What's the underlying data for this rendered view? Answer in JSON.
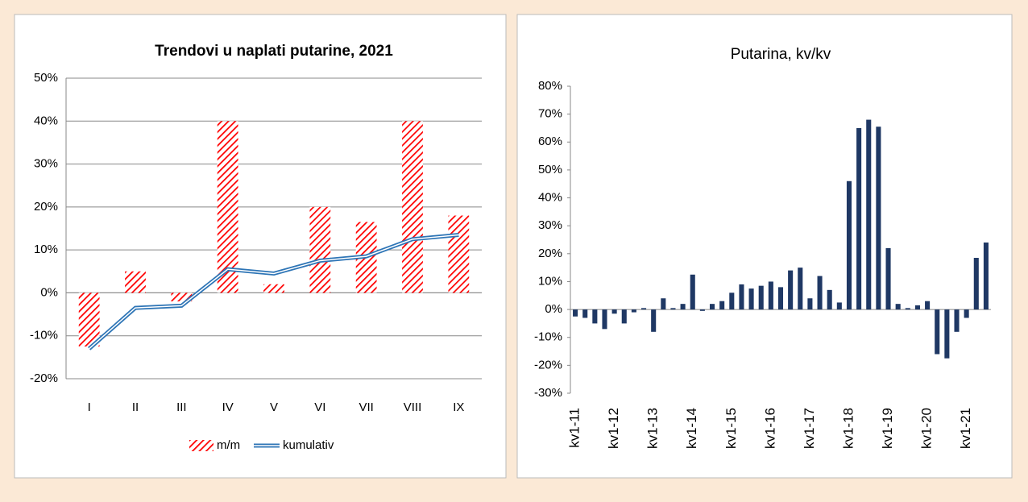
{
  "chart_data": [
    {
      "type": "bar",
      "title": "Trendovi u naplati putarine, 2021",
      "categories": [
        "I",
        "II",
        "III",
        "IV",
        "V",
        "VI",
        "VII",
        "VIII",
        "IX"
      ],
      "series": [
        {
          "name": "m/m",
          "type": "bar",
          "pattern": "hatch",
          "color": "#ff0000",
          "values": [
            -12.5,
            5,
            -2,
            40,
            2,
            20,
            16.5,
            40,
            18
          ]
        },
        {
          "name": "kumulativ",
          "type": "line",
          "color": "#2e75b6",
          "values": [
            -13,
            -3.5,
            -3,
            5.5,
            4.5,
            7.5,
            8.5,
            12.5,
            13.5
          ]
        }
      ],
      "ylim": [
        -20,
        50
      ],
      "yticks": [
        {
          "value": -20,
          "label": "-20%"
        },
        {
          "value": -10,
          "label": "-10%"
        },
        {
          "value": 0,
          "label": "0%"
        },
        {
          "value": 10,
          "label": "10%"
        },
        {
          "value": 20,
          "label": "20%"
        },
        {
          "value": 30,
          "label": "30%"
        },
        {
          "value": 40,
          "label": "40%"
        },
        {
          "value": 50,
          "label": "50%"
        }
      ],
      "grid": true,
      "legend": "bottom"
    },
    {
      "type": "bar",
      "title": "Putarina, kv/kv",
      "categories": [
        "kv1-11",
        null,
        null,
        null,
        "kv1-12",
        null,
        null,
        null,
        "kv1-13",
        null,
        null,
        null,
        "kv1-14",
        null,
        null,
        null,
        "kv1-15",
        null,
        null,
        null,
        "kv1-16",
        null,
        null,
        null,
        "kv1-17",
        null,
        null,
        null,
        "kv1-18",
        null,
        null,
        null,
        "kv1-19",
        null,
        null,
        null,
        "kv1-20",
        null,
        null,
        null,
        "kv1-21",
        null,
        null
      ],
      "series": [
        {
          "name": null,
          "type": "bar",
          "color": "#1f3864",
          "values": [
            -2.5,
            -3,
            -5,
            -7,
            -1.5,
            -5,
            -1,
            0.5,
            -8,
            4,
            0.5,
            2,
            12.5,
            -0.5,
            2,
            3,
            6,
            9,
            7.5,
            8.5,
            10,
            8,
            14,
            15,
            4,
            12,
            7,
            2.5,
            46,
            65,
            68,
            65.5,
            22,
            2,
            0.5,
            1.5,
            3,
            -16,
            -17.5,
            -8,
            -3,
            18.5,
            24
          ]
        }
      ],
      "ylim": [
        -30,
        80
      ],
      "yticks": [
        {
          "value": -30,
          "label": "-30%"
        },
        {
          "value": -20,
          "label": "-20%"
        },
        {
          "value": -10,
          "label": "-10%"
        },
        {
          "value": 0,
          "label": "0%"
        },
        {
          "value": 10,
          "label": "10%"
        },
        {
          "value": 20,
          "label": "20%"
        },
        {
          "value": 30,
          "label": "30%"
        },
        {
          "value": 40,
          "label": "40%"
        },
        {
          "value": 50,
          "label": "50%"
        },
        {
          "value": 60,
          "label": "60%"
        },
        {
          "value": 70,
          "label": "70%"
        },
        {
          "value": 80,
          "label": "80%"
        }
      ],
      "grid": false,
      "rotate_labels": true
    }
  ]
}
